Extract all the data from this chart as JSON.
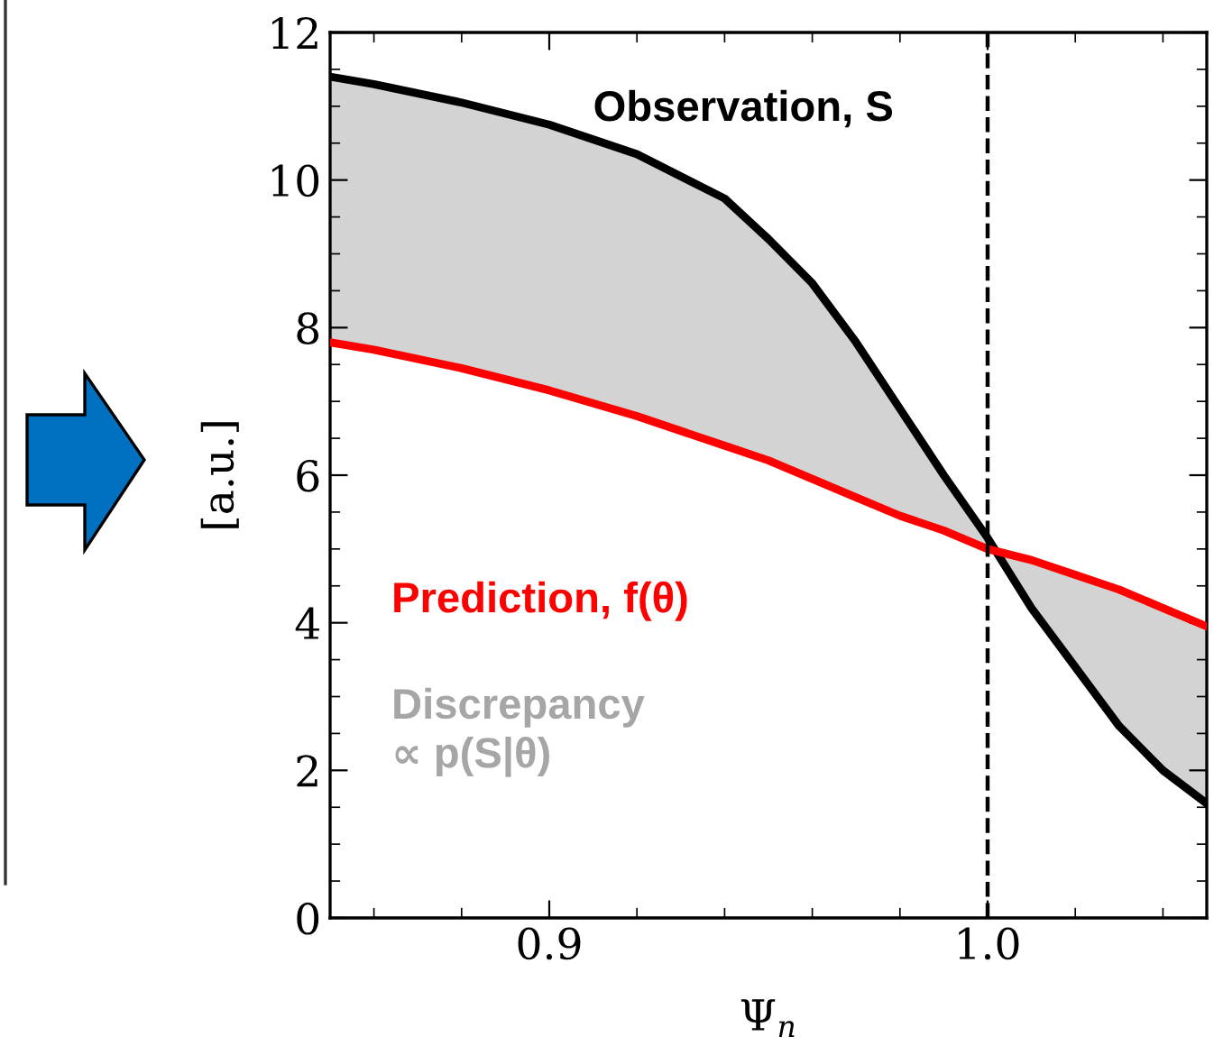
{
  "chart_data": {
    "type": "line",
    "xlabel": "Ψ$_{n}$",
    "ylabel": "[a.u.]",
    "x": [
      0.85,
      0.86,
      0.88,
      0.9,
      0.92,
      0.94,
      0.95,
      0.96,
      0.97,
      0.98,
      0.99,
      1.0,
      1.01,
      1.02,
      1.03,
      1.04,
      1.05
    ],
    "series": [
      {
        "name": "Observation, S",
        "color": "#000000",
        "lower": [
          7.8,
          7.7,
          7.45,
          7.15,
          6.8,
          6.4,
          6.2,
          5.95,
          5.7,
          5.45,
          5.25,
          5.0,
          4.85,
          4.65,
          4.45,
          4.2,
          3.95
        ],
        "upper": [
          11.4,
          11.3,
          11.05,
          10.75,
          10.35,
          9.75,
          9.2,
          8.6,
          7.8,
          6.9,
          6.0,
          5.15,
          4.2,
          3.4,
          2.6,
          2.0,
          1.55
        ],
        "values": [
          11.4,
          11.3,
          11.05,
          10.75,
          10.35,
          9.75,
          9.2,
          8.6,
          7.8,
          6.9,
          6.0,
          5.15,
          4.2,
          3.4,
          2.6,
          2.0,
          1.55
        ]
      },
      {
        "name": "Prediction, f(θ)",
        "color": "#ff0000",
        "values": [
          7.8,
          7.7,
          7.45,
          7.15,
          6.8,
          6.4,
          6.2,
          5.95,
          5.7,
          5.45,
          5.25,
          5.0,
          4.85,
          4.65,
          4.45,
          4.2,
          3.95
        ]
      }
    ],
    "xlim": [
      0.85,
      1.05
    ],
    "ylim": [
      0,
      12
    ],
    "xticks": [
      {
        "value": 0.9,
        "label": "0.9"
      },
      {
        "value": 1.0,
        "label": "1.0"
      }
    ],
    "yticks": [
      0,
      2,
      4,
      6,
      8,
      10,
      12
    ],
    "annotations": [
      "Discrepancy\n∝ p(S|θ)"
    ],
    "ref_lines": [
      {
        "axis": "x",
        "value": 1.0,
        "color": "#000000",
        "line_style": "dashed"
      }
    ],
    "grid": false
  }
}
